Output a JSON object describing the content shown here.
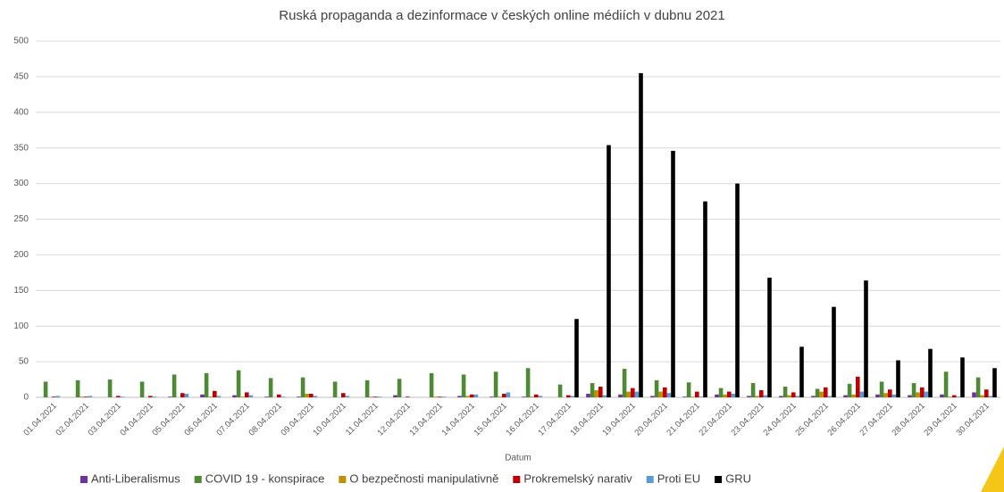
{
  "chart_data": {
    "type": "bar",
    "title": "Ruská propaganda a dezinformace v českých online médiích v dubnu 2021",
    "x_label": "Datum",
    "categories": [
      "01.04.2021",
      "02.04.2021",
      "03.04.2021",
      "04.04.2021",
      "05.04.2021",
      "06.04.2021",
      "07.04.2021",
      "08.04.2021",
      "09.04.2021",
      "10.04.2021",
      "11.04.2021",
      "12.04.2021",
      "13.04.2021",
      "14.04.2021",
      "15.04.2021",
      "16.04.2021",
      "17.04.2021",
      "18.04.2021",
      "19.04.2021",
      "20.04.2021",
      "21.04.2021",
      "22.04.2021",
      "23.04.2021",
      "24.04.2021",
      "25.04.2021",
      "26.04.2021",
      "27.04.2021",
      "28.04.2021",
      "29.04.2021",
      "30.04.2021"
    ],
    "series": [
      {
        "name": "Anti-Liberalismus",
        "color": "#7030a0",
        "values": [
          0,
          0,
          0,
          0,
          1,
          4,
          3,
          1,
          1,
          0,
          0,
          3,
          0,
          2,
          1,
          1,
          0,
          5,
          4,
          2,
          1,
          4,
          2,
          2,
          2,
          3,
          4,
          3,
          4,
          7
        ]
      },
      {
        "name": "COVID 19 - konspirace",
        "color": "#4e8a35",
        "values": [
          22,
          24,
          25,
          22,
          32,
          34,
          38,
          27,
          28,
          22,
          24,
          26,
          34,
          32,
          36,
          41,
          18,
          20,
          40,
          24,
          21,
          13,
          20,
          15,
          12,
          19,
          22,
          20,
          36,
          28
        ]
      },
      {
        "name": "O bezpečnosti manipulativně",
        "color": "#bf9000",
        "values": [
          0,
          1,
          0,
          0,
          0,
          1,
          1,
          0,
          5,
          0,
          1,
          0,
          1,
          2,
          1,
          1,
          0,
          10,
          8,
          8,
          1,
          4,
          2,
          3,
          8,
          4,
          6,
          7,
          1,
          3
        ]
      },
      {
        "name": "Prokremelský narativ",
        "color": "#c00000",
        "values": [
          1,
          1,
          2,
          2,
          6,
          9,
          7,
          4,
          5,
          6,
          1,
          1,
          1,
          4,
          5,
          4,
          3,
          15,
          13,
          14,
          8,
          8,
          10,
          7,
          14,
          29,
          11,
          14,
          3,
          11
        ]
      },
      {
        "name": "Proti EU",
        "color": "#5b9bd5",
        "values": [
          2,
          2,
          1,
          1,
          5,
          2,
          3,
          1,
          2,
          2,
          1,
          0,
          1,
          4,
          7,
          2,
          2,
          3,
          8,
          6,
          1,
          5,
          3,
          2,
          2,
          8,
          4,
          8,
          1,
          2
        ]
      },
      {
        "name": "GRU",
        "color": "#000000",
        "values": [
          0,
          0,
          0,
          0,
          0,
          0,
          0,
          0,
          0,
          0,
          0,
          0,
          0,
          0,
          0,
          0,
          110,
          354,
          455,
          346,
          275,
          300,
          168,
          71,
          127,
          164,
          52,
          68,
          56,
          41
        ]
      }
    ],
    "ylim": [
      0,
      500
    ],
    "yticks": [
      0,
      50,
      100,
      150,
      200,
      250,
      300,
      350,
      400,
      450,
      500
    ],
    "grid": true,
    "legend": "bottom"
  }
}
